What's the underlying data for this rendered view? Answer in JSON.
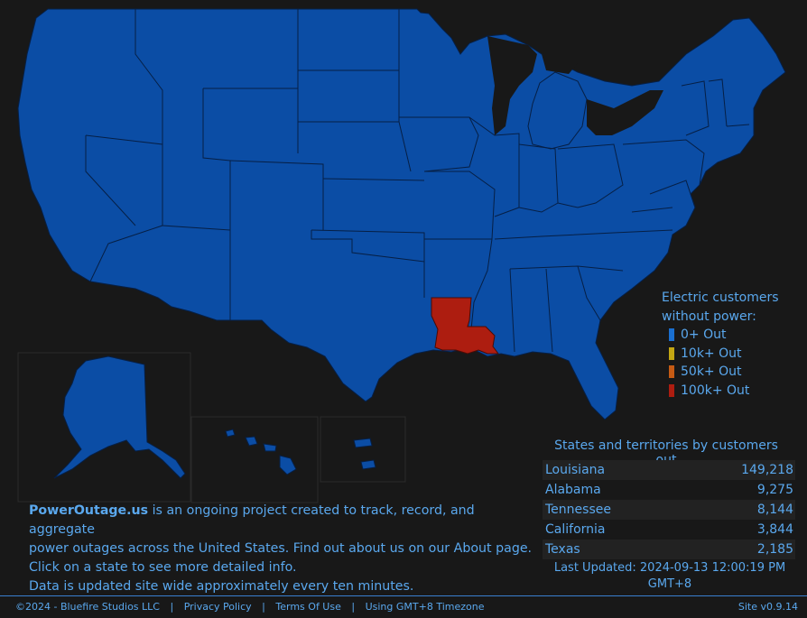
{
  "colors": {
    "background": "#181818",
    "state_fill": "#0b4da5",
    "state_border": "#061f45",
    "text": "#5aa8ee",
    "level_0": "#1a6fd0",
    "level_10k": "#c3a613",
    "level_50k": "#c65b14",
    "level_100k": "#ad1d10"
  },
  "legend": {
    "title_line1": "Electric customers",
    "title_line2": "without power:",
    "items": [
      {
        "label": "0+ Out",
        "color": "#1a6fd0"
      },
      {
        "label": "10k+ Out",
        "color": "#c3a613"
      },
      {
        "label": "50k+ Out",
        "color": "#c65b14"
      },
      {
        "label": "100k+ Out",
        "color": "#ad1d10"
      }
    ]
  },
  "highlighted_state": {
    "name": "Louisiana",
    "level": "100k+ Out"
  },
  "states_panel": {
    "title": "States and territories by customers out",
    "rows": [
      {
        "state": "Louisiana",
        "count": "149,218"
      },
      {
        "state": "Alabama",
        "count": "9,275"
      },
      {
        "state": "Tennessee",
        "count": "8,144"
      },
      {
        "state": "California",
        "count": "3,844"
      },
      {
        "state": "Texas",
        "count": "2,185"
      }
    ],
    "last_updated_line1": "Last Updated: 2024-09-13 12:00:19 PM",
    "last_updated_line2": "GMT+8"
  },
  "about": {
    "brand": "PowerOutage.us",
    "line1_rest": " is an ongoing project created to track, record, and aggregate",
    "line2_pre": "power outages across the United States. Find out about us on our ",
    "line2_link": "About",
    "line2_post": " page.",
    "line3": "Click on a state to see more detailed info.",
    "line4": "Data is updated site wide approximately every ten minutes."
  },
  "footer": {
    "copyright": "©2024 - Bluefire Studios LLC",
    "privacy": "Privacy Policy",
    "terms": "Terms Of Use",
    "timezone": "Using GMT+8 Timezone",
    "version": "Site v0.9.14"
  }
}
